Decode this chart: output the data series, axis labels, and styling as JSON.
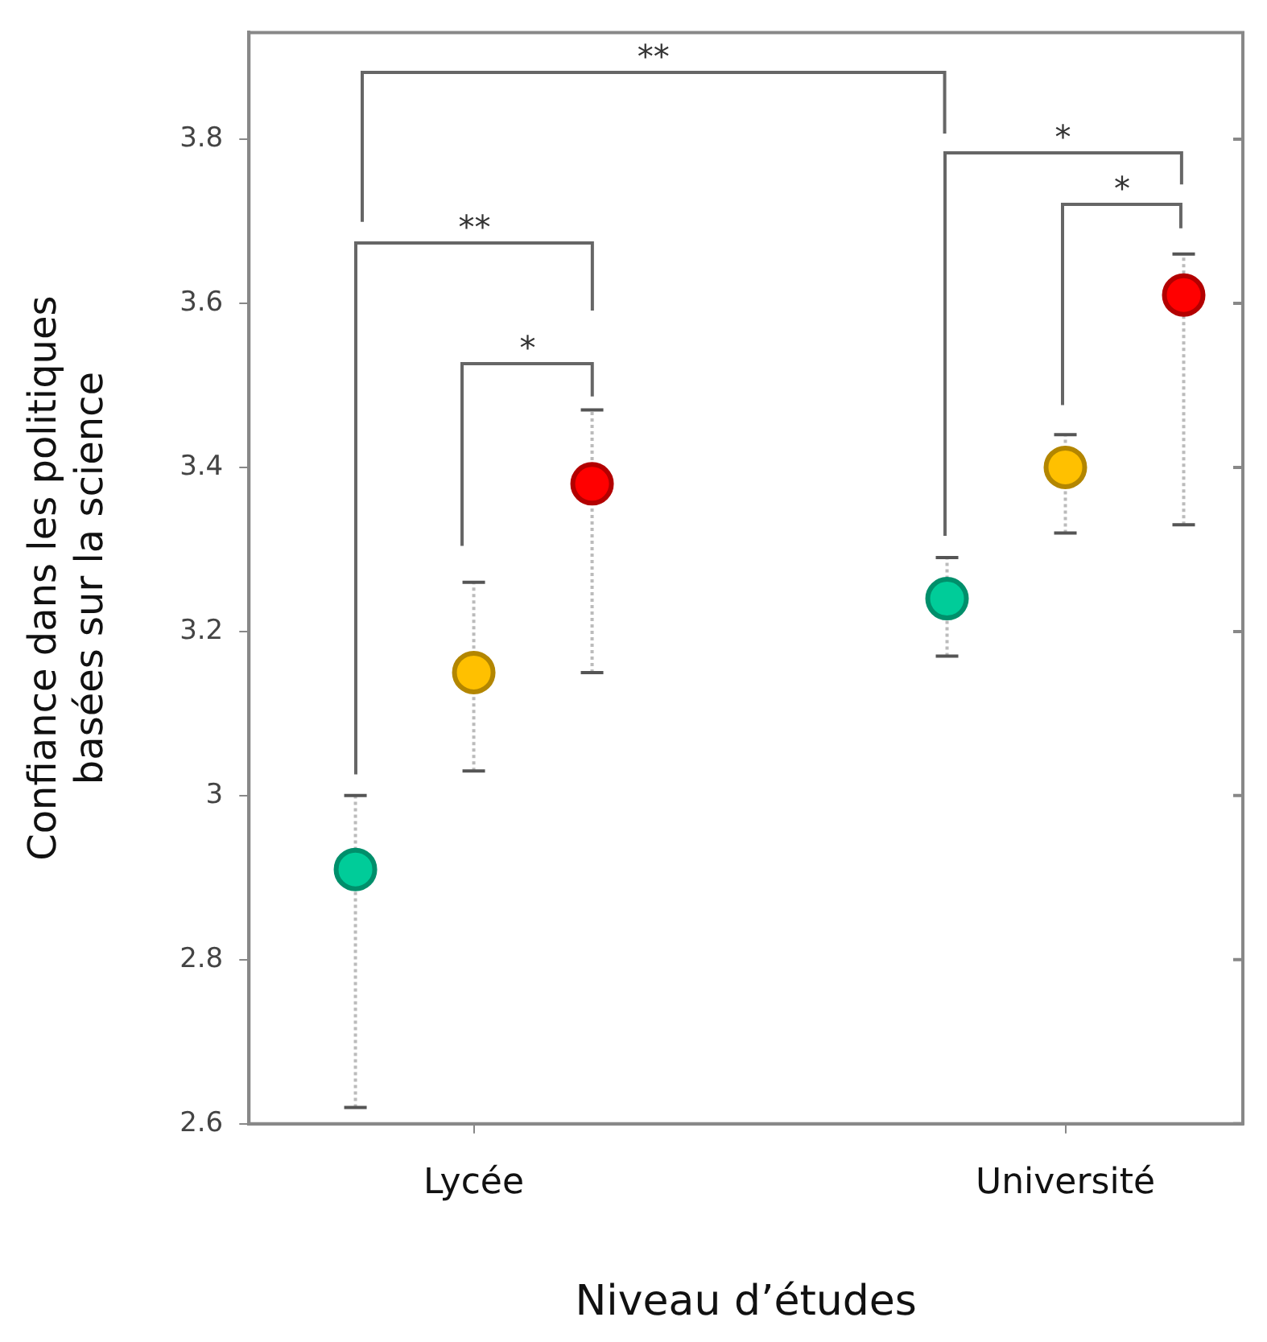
{
  "chart_data": {
    "type": "scatter",
    "xlabel": "Niveau d’études",
    "ylabel": "Confiance dans les politiques\nbasées sur la science",
    "categories": [
      "Lycée",
      "Université"
    ],
    "ylim": [
      2.6,
      3.93
    ],
    "yticks": [
      2.6,
      2.8,
      3,
      3.2,
      3.4,
      3.6,
      3.8
    ],
    "series": [
      {
        "color": "#00cc99",
        "values": [
          2.91,
          3.24
        ],
        "errors": [
          [
            2.62,
            3.0
          ],
          [
            3.17,
            3.29
          ]
        ]
      },
      {
        "color": "#ffc000",
        "values": [
          3.15,
          3.4
        ],
        "errors": [
          [
            3.03,
            3.26
          ],
          [
            3.32,
            3.44
          ]
        ]
      },
      {
        "color": "#ff0000",
        "values": [
          3.38,
          3.61
        ],
        "errors": [
          [
            3.15,
            3.47
          ],
          [
            3.33,
            3.66
          ]
        ]
      }
    ],
    "annotations": [
      "**",
      "**",
      "*",
      "*",
      "*"
    ],
    "grid": false,
    "legend": false,
    "marker": "circle"
  }
}
